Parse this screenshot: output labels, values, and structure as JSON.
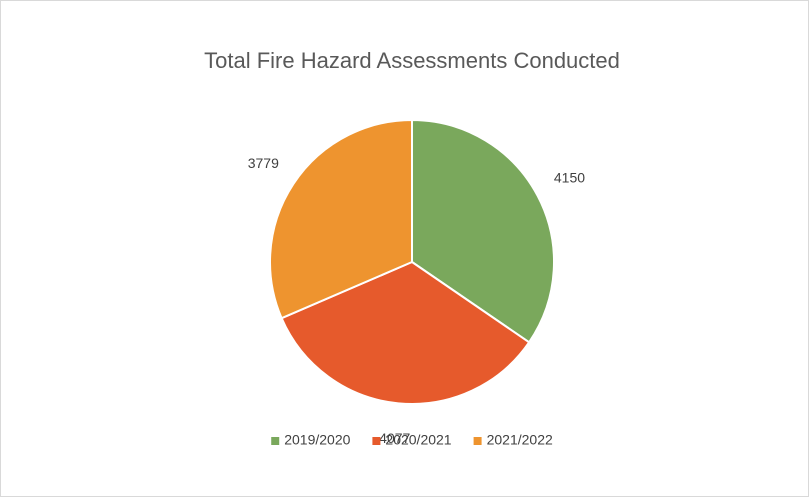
{
  "chart_data": {
    "type": "pie",
    "title": "Total Fire Hazard Assessments Conducted",
    "categories": [
      "2019/2020",
      "2020/2021",
      "2021/2022"
    ],
    "values": [
      4150,
      4077,
      3779
    ],
    "colors": [
      "#7aa85c",
      "#e65a2c",
      "#ee942f"
    ],
    "legend": "bottom"
  }
}
